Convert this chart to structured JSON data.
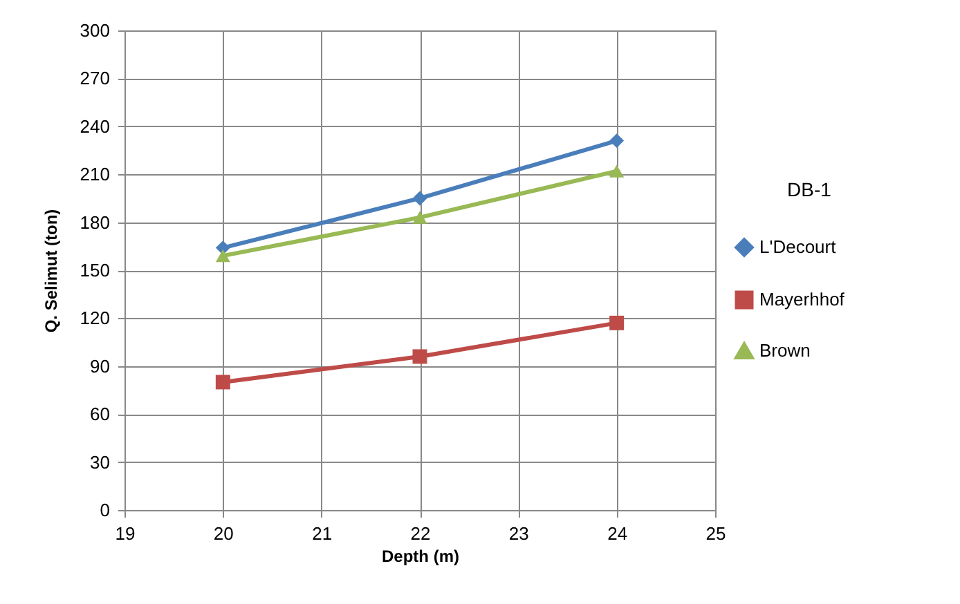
{
  "chart_data": {
    "type": "line",
    "xlabel": "Depth (m)",
    "ylabel": "Q. Selimut (ton)",
    "annotations": [
      "DB-1"
    ],
    "x": [
      20,
      22,
      24
    ],
    "xlim": [
      19,
      25
    ],
    "xticks": [
      19,
      20,
      21,
      22,
      23,
      24,
      25
    ],
    "ylim": [
      0,
      300
    ],
    "yticks": [
      0,
      30,
      60,
      90,
      120,
      150,
      180,
      210,
      240,
      270,
      300
    ],
    "grid": true,
    "legend": "right",
    "line_style": "solid",
    "series": [
      {
        "name": "L'Decourt",
        "color": "#4a7ebb",
        "marker": "diamond",
        "values": [
          164,
          195,
          231
        ]
      },
      {
        "name": "Mayerhhof",
        "color": "#be4b48",
        "marker": "square",
        "values": [
          80,
          96,
          117
        ]
      },
      {
        "name": "Brown",
        "color": "#98b954",
        "marker": "triangle",
        "values": [
          159,
          183,
          212
        ]
      }
    ]
  }
}
